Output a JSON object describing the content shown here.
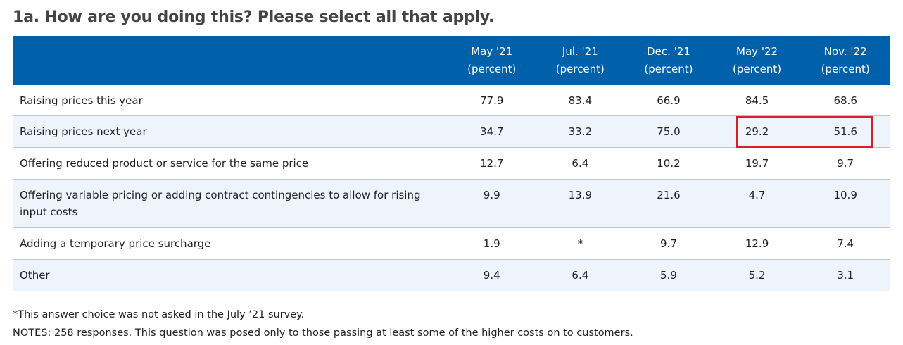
{
  "title": "1a. How are you doing this? Please select all that apply.",
  "table": {
    "columns": [
      {
        "period": "May '21",
        "unit": "(percent)"
      },
      {
        "period": "Jul. '21",
        "unit": "(percent)"
      },
      {
        "period": "Dec. '21",
        "unit": "(percent)"
      },
      {
        "period": "May '22",
        "unit": "(percent)"
      },
      {
        "period": "Nov. '22",
        "unit": "(percent)"
      }
    ],
    "rows": [
      {
        "label": "Raising prices this year",
        "values": [
          "77.9",
          "83.4",
          "66.9",
          "84.5",
          "68.6"
        ]
      },
      {
        "label": "Raising prices next year",
        "values": [
          "34.7",
          "33.2",
          "75.0",
          "29.2",
          "51.6"
        ]
      },
      {
        "label": "Offering reduced product or service for the same price",
        "values": [
          "12.7",
          "6.4",
          "10.2",
          "19.7",
          "9.7"
        ]
      },
      {
        "label": "Offering variable pricing or adding contract contingencies to allow for rising input costs",
        "values": [
          "9.9",
          "13.9",
          "21.6",
          "4.7",
          "10.9"
        ]
      },
      {
        "label": "Adding a temporary price surcharge",
        "values": [
          "1.9",
          "*",
          "9.7",
          "12.9",
          "7.4"
        ]
      },
      {
        "label": "Other",
        "values": [
          "9.4",
          "6.4",
          "5.9",
          "5.2",
          "3.1"
        ]
      }
    ]
  },
  "notes": {
    "footnote": "*This answer choice was not asked in the July ’21 survey.",
    "notes": "NOTES: 258 responses. This question was posed only to those passing at least some of the higher costs on to customers."
  },
  "colors": {
    "header_background": "#0160aa",
    "alternate_row": "#eef4fb",
    "highlight_border": "#d61f26",
    "title_text": "#444444"
  }
}
